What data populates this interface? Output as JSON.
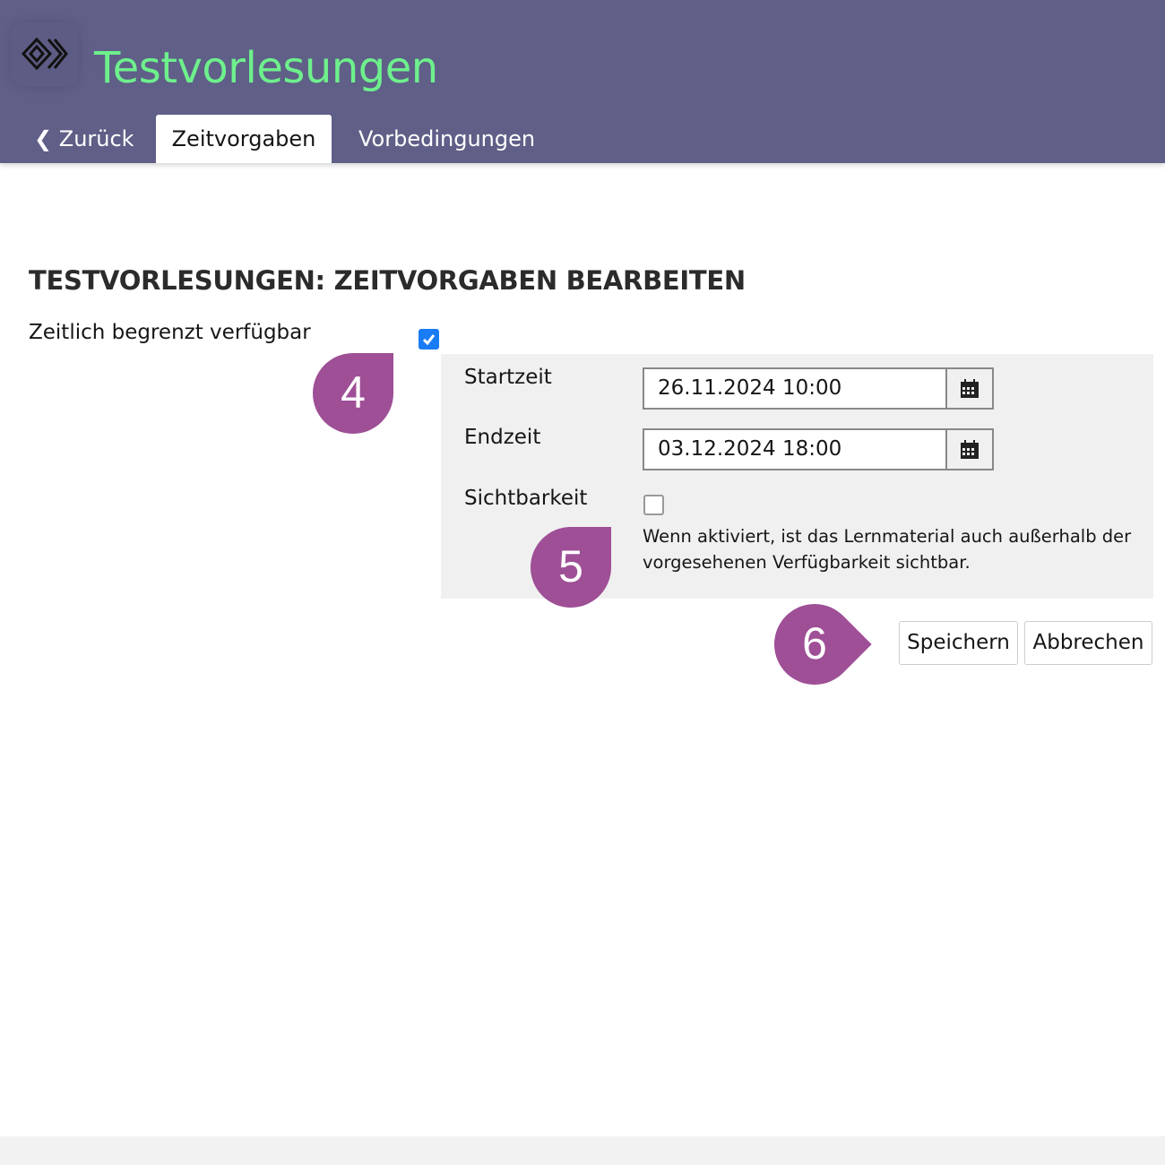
{
  "header": {
    "title": "Testvorlesungen",
    "tabs": [
      {
        "label": "Zurück"
      },
      {
        "label": "Zeitvorgaben",
        "active": true
      },
      {
        "label": "Vorbedingungen"
      }
    ]
  },
  "page": {
    "heading": "TESTVORLESUNGEN: ZEITVORGABEN BEARBEITEN"
  },
  "form": {
    "limited_label": "Zeitlich begrenzt verfügbar",
    "limited_checked": true,
    "start_label": "Startzeit",
    "start_value": "26.11.2024 10:00",
    "end_label": "Endzeit",
    "end_value": "03.12.2024 18:00",
    "visibility_label": "Sichtbarkeit",
    "visibility_checked": false,
    "visibility_help": "Wenn aktiviert, ist das Lernmaterial auch außerhalb der vorgesehenen Verfügbarkeit sichtbar.",
    "save_label": "Speichern",
    "cancel_label": "Abbrechen"
  },
  "markers": [
    "4",
    "5",
    "6"
  ],
  "colors": {
    "header": "#5f5f88",
    "title": "#6ef08c",
    "marker": "#9e4f96",
    "checkbox": "#1a7cf5"
  }
}
